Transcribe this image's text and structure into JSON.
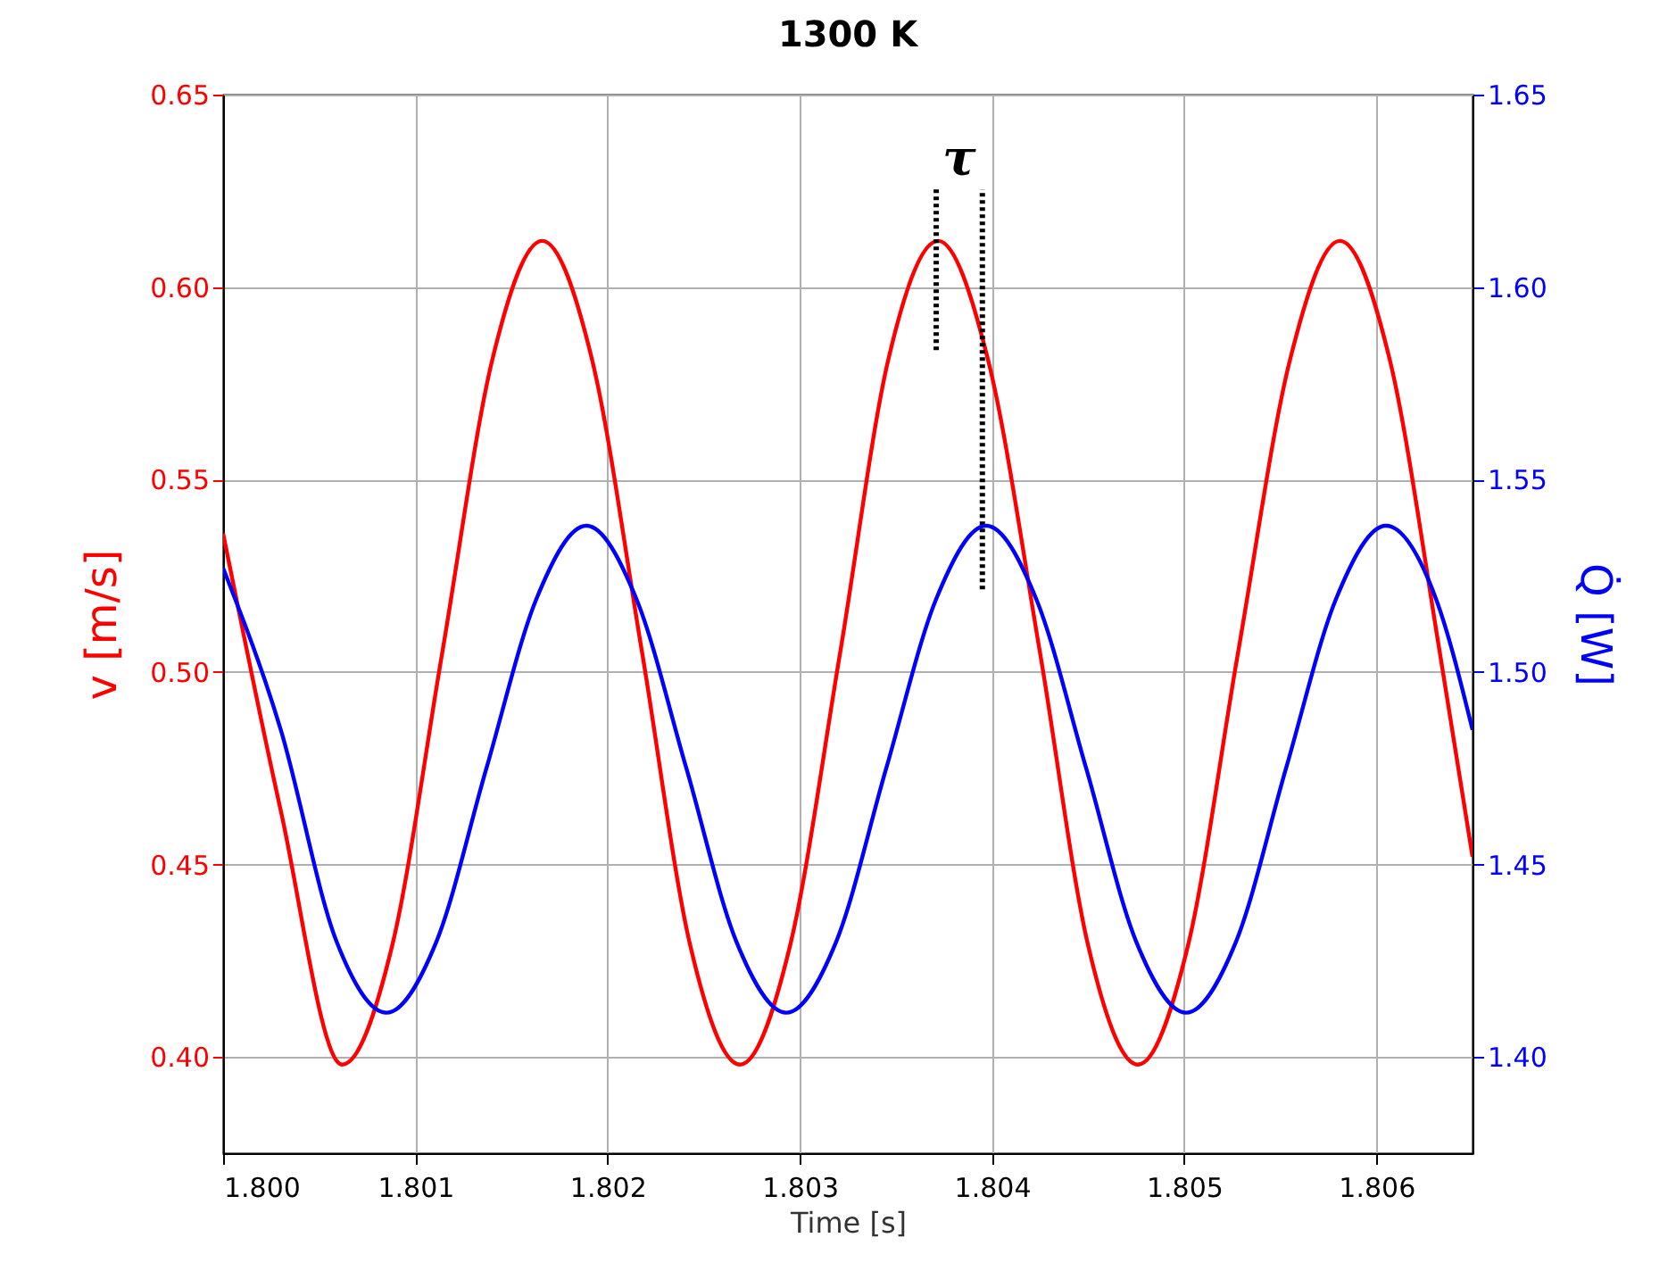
{
  "chart_data": {
    "type": "line",
    "title": "1300 K",
    "xlabel": "Time [s]",
    "ylabel": "v [m/s]",
    "y2label": "Q̇ [W]",
    "xlim": [
      1.8,
      1.8065
    ],
    "xticks": [
      {
        "value": 1.8,
        "label": "1.800"
      },
      1.801,
      1.802,
      1.803,
      1.804,
      1.805,
      1.806
    ],
    "ylim": [
      0.375,
      0.65
    ],
    "yticks": [
      {
        "value": 0.4,
        "label": "0.40"
      },
      0.45,
      {
        "value": 0.5,
        "label": "0.50"
      },
      0.55,
      {
        "value": 0.6,
        "label": "0.60"
      },
      0.65
    ],
    "y2lim": [
      1.375,
      1.65
    ],
    "y2ticks": [
      {
        "value": 1.4,
        "label": "1.40"
      },
      1.45,
      {
        "value": 1.5,
        "label": "1.50"
      },
      1.55,
      {
        "value": 1.6,
        "label": "1.60"
      },
      1.65
    ],
    "grid": true,
    "series": [
      {
        "color": "#ff0000",
        "x": [
          1.8,
          1.8003,
          1.80062,
          1.80088,
          1.80114,
          1.8014,
          1.80166,
          1.80192,
          1.80218,
          1.80243,
          1.80269,
          1.80295,
          1.80321,
          1.80346,
          1.80372,
          1.80398,
          1.80425,
          1.8045,
          1.80476,
          1.80502,
          1.80528,
          1.80555,
          1.80581,
          1.80607,
          1.80633,
          1.8065
        ],
        "values": [
          0.536,
          0.464,
          0.398,
          0.429,
          0.505,
          0.581,
          0.612,
          0.581,
          0.505,
          0.429,
          0.398,
          0.429,
          0.505,
          0.581,
          0.612,
          0.581,
          0.505,
          0.429,
          0.398,
          0.429,
          0.505,
          0.581,
          0.612,
          0.581,
          0.505,
          0.452
        ]
      },
      {
        "color": "#0000ff",
        "axis": "y2",
        "x": [
          1.8,
          1.8003,
          1.80059,
          1.80085,
          1.80111,
          1.80137,
          1.80163,
          1.80189,
          1.80215,
          1.80241,
          1.80267,
          1.80293,
          1.80319,
          1.80345,
          1.80371,
          1.80397,
          1.80423,
          1.80449,
          1.80475,
          1.80501,
          1.80527,
          1.80553,
          1.80579,
          1.80605,
          1.80631,
          1.8065
        ],
        "values": [
          1.527,
          1.485,
          1.43,
          1.4115,
          1.43,
          1.475,
          1.519,
          1.538,
          1.519,
          1.475,
          1.43,
          1.4115,
          1.43,
          1.475,
          1.519,
          1.538,
          1.519,
          1.475,
          1.43,
          1.4115,
          1.43,
          1.475,
          1.519,
          1.538,
          1.519,
          1.485
        ]
      },
      {
        "color": "#000000",
        "line_style": "dotted",
        "x": [
          1.80371,
          1.80371
        ],
        "values": [
          0.5836,
          0.6254
        ]
      },
      {
        "color": "#000000",
        "line_style": "dotted",
        "x": [
          1.80395,
          1.80395
        ],
        "values": [
          0.5215,
          0.6254
        ]
      }
    ],
    "annotations": [
      "τ"
    ]
  }
}
